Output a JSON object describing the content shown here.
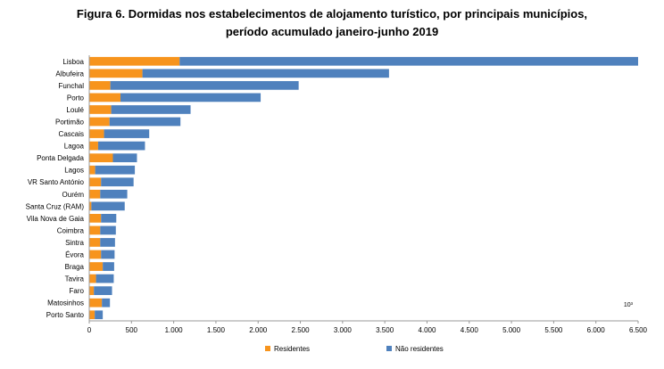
{
  "title_line1": "Figura 6. Dormidas nos estabelecimentos de alojamento turístico, por principais municípios,",
  "title_line2": "período acumulado janeiro-junho 2019",
  "colors": {
    "residentes": "#f7941d",
    "nao_residentes": "#4f81bd",
    "axis": "#999999",
    "grid": "#d9d9d9"
  },
  "chart_data": {
    "type": "bar",
    "orientation": "horizontal",
    "stacked": true,
    "categories": [
      "Lisboa",
      "Albufeira",
      "Funchal",
      "Porto",
      "Loulé",
      "Portimão",
      "Cascais",
      "Lagoa",
      "Ponta Delgada",
      "Lagos",
      "VR Santo António",
      "Ourém",
      "Santa Cruz (RAM)",
      "Vila Nova de Gaia",
      "Coimbra",
      "Sintra",
      "Évora",
      "Braga",
      "Tavira",
      "Faro",
      "Matosinhos",
      "Porto Santo"
    ],
    "series": [
      {
        "name": "Residentes",
        "color": "#f7941d",
        "values": [
          1070,
          630,
          250,
          370,
          260,
          240,
          175,
          105,
          280,
          70,
          140,
          130,
          25,
          140,
          130,
          130,
          140,
          160,
          80,
          55,
          150,
          65
        ]
      },
      {
        "name": "Não residentes",
        "color": "#4f81bd",
        "values": [
          5430,
          2920,
          2230,
          1660,
          940,
          840,
          535,
          555,
          285,
          470,
          385,
          320,
          395,
          180,
          185,
          175,
          160,
          135,
          210,
          215,
          95,
          95
        ]
      }
    ],
    "xlim": [
      0,
      6500
    ],
    "xticks": [
      "0",
      "500",
      "1.000",
      "1.500",
      "2.000",
      "2.500",
      "3.000",
      "3.500",
      "4.000",
      "4.500",
      "5.000",
      "5.500",
      "6.000",
      "6.500"
    ],
    "unit_label": "10³",
    "grid": false,
    "legend_position": "bottom"
  }
}
